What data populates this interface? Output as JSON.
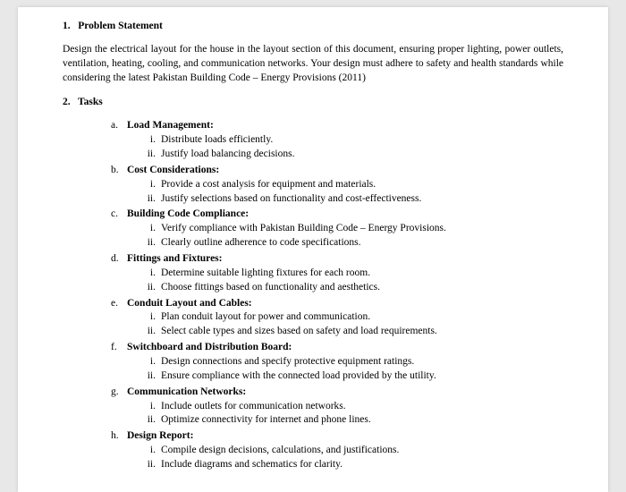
{
  "section1": {
    "number": "1.",
    "title": "Problem Statement",
    "body": "Design the electrical layout for the house in the layout section of this document, ensuring proper lighting, power outlets, ventilation, heating, cooling, and communication networks. Your design must adhere to safety and health standards while considering the latest Pakistan Building Code – Energy Provisions (2011)"
  },
  "section2": {
    "number": "2.",
    "title": "Tasks"
  },
  "tasks": [
    {
      "letter": "a.",
      "title": "Load Management:",
      "items": [
        "Distribute loads efficiently.",
        "Justify load balancing decisions."
      ]
    },
    {
      "letter": "b.",
      "title": "Cost Considerations:",
      "items": [
        "Provide a cost analysis for equipment and materials.",
        "Justify selections based on functionality and cost-effectiveness."
      ]
    },
    {
      "letter": "c.",
      "title": "Building Code Compliance:",
      "items": [
        "Verify compliance with Pakistan Building Code – Energy Provisions.",
        "Clearly outline adherence to code specifications."
      ]
    },
    {
      "letter": "d.",
      "title": "Fittings and Fixtures:",
      "items": [
        "Determine suitable lighting fixtures for each room.",
        "Choose fittings based on functionality and aesthetics."
      ]
    },
    {
      "letter": "e.",
      "title": "Conduit Layout and Cables:",
      "items": [
        "Plan conduit layout for power and communication.",
        "Select cable types and sizes based on safety and load requirements."
      ]
    },
    {
      "letter": "f.",
      "title": "Switchboard and Distribution Board:",
      "items": [
        "Design connections and specify protective equipment ratings.",
        "Ensure compliance with the connected load provided by the utility."
      ]
    },
    {
      "letter": "g.",
      "title": "Communication Networks:",
      "items": [
        "Include outlets for communication networks.",
        "Optimize connectivity for internet and phone lines."
      ]
    },
    {
      "letter": "h.",
      "title": "Design Report:",
      "items": [
        "Compile design decisions, calculations, and justifications.",
        "Include diagrams and schematics for clarity."
      ]
    }
  ],
  "roman": [
    "i.",
    "ii."
  ]
}
